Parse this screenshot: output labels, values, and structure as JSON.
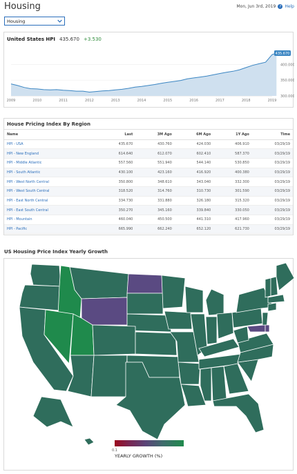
{
  "header": {
    "title": "Housing",
    "date": "Mon, Jun 3rd, 2019",
    "help_label": "Help"
  },
  "selector": {
    "value": "Housing"
  },
  "hpi": {
    "title": "United States HPI",
    "value": "435.670",
    "change": "+3.530",
    "up_color": "#2e8b3a"
  },
  "chart_data": {
    "type": "area",
    "x": [
      "2009-01",
      "2009-04",
      "2009-07",
      "2009-10",
      "2010-01",
      "2010-04",
      "2010-07",
      "2010-10",
      "2011-01",
      "2011-04",
      "2011-07",
      "2011-10",
      "2012-01",
      "2012-04",
      "2012-07",
      "2012-10",
      "2013-01",
      "2013-04",
      "2013-07",
      "2013-10",
      "2014-01",
      "2014-04",
      "2014-07",
      "2014-10",
      "2015-01",
      "2015-04",
      "2015-07",
      "2015-10",
      "2016-01",
      "2016-04",
      "2016-07",
      "2016-10",
      "2017-01",
      "2017-04",
      "2017-07",
      "2017-10",
      "2018-01",
      "2018-04",
      "2018-07",
      "2018-10",
      "2019-01",
      "2019-03"
    ],
    "series": [
      {
        "values": [
          338,
          333,
          327,
          323,
          322,
          320,
          319,
          320,
          318,
          317,
          315,
          315,
          312,
          314,
          316,
          317,
          319,
          321,
          324,
          328,
          330,
          333,
          336,
          340,
          343,
          346,
          349,
          354,
          357,
          360,
          363,
          367,
          371,
          375,
          378,
          383,
          390,
          397,
          402,
          407,
          431,
          435.67
        ]
      }
    ],
    "x_ticks": [
      "2009",
      "2010",
      "2011",
      "2012",
      "2013",
      "2014",
      "2015",
      "2016",
      "2017",
      "2018",
      "2019"
    ],
    "y_ticks": [
      "300.000",
      "350.000",
      "400.000"
    ],
    "last_label": "435.670",
    "ylim": [
      300,
      440
    ],
    "fill_color": "#cfe0ef",
    "line_color": "#3a85c2"
  },
  "region_table": {
    "title": "House Pricing Index By Region",
    "columns": [
      "Name",
      "Last",
      "3M Ago",
      "6M Ago",
      "1Y Ago",
      "Time"
    ],
    "rows": [
      [
        "HPI - USA",
        "435.670",
        "430.760",
        "424.030",
        "406.910",
        "03/29/19"
      ],
      [
        "HPI - New England",
        "614.640",
        "612.070",
        "602.410",
        "587.370",
        "03/29/19"
      ],
      [
        "HPI - Middle Atlantic",
        "557.560",
        "551.940",
        "544.140",
        "530.850",
        "03/29/19"
      ],
      [
        "HPI - South Atlantic",
        "430.100",
        "423.160",
        "416.920",
        "400.380",
        "03/29/19"
      ],
      [
        "HPI - West North Central",
        "350.800",
        "348.610",
        "343.040",
        "332.300",
        "03/29/19"
      ],
      [
        "HPI - West South Central",
        "318.520",
        "314.760",
        "310.730",
        "301.590",
        "03/29/19"
      ],
      [
        "HPI - East North Central",
        "334.730",
        "331.880",
        "326.180",
        "315.320",
        "03/29/19"
      ],
      [
        "HPI - East South Central",
        "350.270",
        "345.160",
        "339.840",
        "330.050",
        "03/29/19"
      ],
      [
        "HPI - Mountain",
        "460.040",
        "450.500",
        "441.310",
        "417.960",
        "03/29/19"
      ],
      [
        "HPI - Pacific",
        "665.990",
        "662.240",
        "652.120",
        "621.730",
        "03/29/19"
      ]
    ]
  },
  "map": {
    "title": "US Housing Price Index Yearly Growth",
    "legend_min": "0.1",
    "legend_label": "YEARLY GROWTH (%)",
    "colors": {
      "mid": "#2f6d5c",
      "high": "#1f8a4c",
      "low": "#5a4a82",
      "border": "#ffffff"
    }
  }
}
